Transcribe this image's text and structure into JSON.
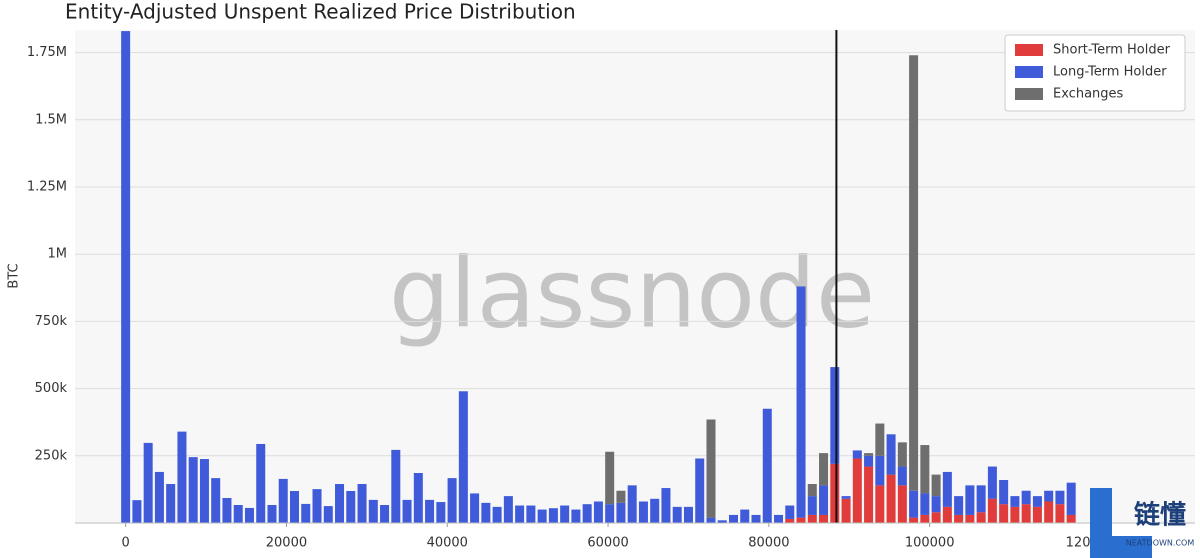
{
  "chart_data": {
    "type": "bar",
    "stacked": true,
    "title": "Entity-Adjusted Unspent Realized Price Distribution",
    "y_label": "BTC",
    "watermark": "glassnode",
    "logo": {
      "text": "链懂",
      "subtext": "NEATDOWN.COM"
    },
    "x": [
      0,
      1400,
      2800,
      4200,
      5600,
      7000,
      8400,
      9800,
      11200,
      12600,
      14000,
      15400,
      16800,
      18200,
      19600,
      21000,
      22400,
      23800,
      25200,
      26600,
      28000,
      29400,
      30800,
      32200,
      33600,
      35000,
      36400,
      37800,
      39200,
      40600,
      42000,
      43400,
      44800,
      46200,
      47600,
      49000,
      50400,
      51800,
      53200,
      54600,
      56000,
      57400,
      58800,
      60200,
      61600,
      63000,
      64400,
      65800,
      67200,
      68600,
      70000,
      71400,
      72800,
      74200,
      75600,
      77000,
      78400,
      79800,
      81200,
      82600,
      84000,
      85400,
      86800,
      88200,
      89600,
      91000,
      92400,
      93800,
      95200,
      96600,
      98000,
      99400,
      100800,
      102200,
      103600,
      105000,
      106400,
      107800,
      109200,
      110600,
      112000,
      113400,
      114800,
      116200,
      117600
    ],
    "series": [
      {
        "name": "Short-Term Holder",
        "color": "#e03c3c",
        "values": [
          0,
          0,
          0,
          0,
          0,
          0,
          0,
          0,
          0,
          0,
          0,
          0,
          0,
          0,
          0,
          0,
          0,
          0,
          0,
          0,
          0,
          0,
          0,
          0,
          0,
          0,
          0,
          0,
          0,
          0,
          0,
          0,
          0,
          0,
          0,
          0,
          0,
          0,
          0,
          0,
          0,
          0,
          0,
          0,
          0,
          0,
          0,
          0,
          0,
          0,
          0,
          0,
          0,
          0,
          0,
          0,
          0,
          0,
          0,
          15000,
          20000,
          30000,
          30000,
          220000,
          90000,
          240000,
          210000,
          140000,
          180000,
          140000,
          20000,
          30000,
          40000,
          60000,
          30000,
          30000,
          40000,
          90000,
          70000,
          60000,
          70000,
          60000,
          80000,
          70000,
          30000
        ]
      },
      {
        "name": "Long-Term Holder",
        "color": "#3f5bd9",
        "values": [
          1830000,
          85000,
          298000,
          190000,
          145000,
          340000,
          245000,
          238000,
          167000,
          93000,
          67000,
          56000,
          294000,
          67000,
          164000,
          119000,
          71000,
          126000,
          63000,
          145000,
          119000,
          145000,
          86000,
          67000,
          272000,
          86000,
          186000,
          86000,
          78000,
          167000,
          490000,
          110000,
          75000,
          60000,
          100000,
          65000,
          65000,
          50000,
          55000,
          65000,
          50000,
          70000,
          80000,
          70000,
          75000,
          140000,
          80000,
          90000,
          130000,
          60000,
          60000,
          240000,
          20000,
          10000,
          30000,
          50000,
          30000,
          425000,
          30000,
          50000,
          860000,
          70000,
          110000,
          360000,
          10000,
          30000,
          40000,
          110000,
          150000,
          70000,
          100000,
          80000,
          60000,
          130000,
          70000,
          110000,
          100000,
          120000,
          90000,
          40000,
          50000,
          40000,
          40000,
          50000,
          120000
        ]
      },
      {
        "name": "Exchanges",
        "color": "#6e6e6e",
        "values": [
          0,
          0,
          0,
          0,
          0,
          0,
          0,
          0,
          0,
          0,
          0,
          0,
          0,
          0,
          0,
          0,
          0,
          0,
          0,
          0,
          0,
          0,
          0,
          0,
          0,
          0,
          0,
          0,
          0,
          0,
          0,
          0,
          0,
          0,
          0,
          0,
          0,
          0,
          0,
          0,
          0,
          0,
          0,
          195000,
          45000,
          0,
          0,
          0,
          0,
          0,
          0,
          0,
          365000,
          0,
          0,
          0,
          0,
          0,
          0,
          0,
          0,
          45000,
          120000,
          0,
          0,
          0,
          10000,
          120000,
          0,
          90000,
          1620000,
          180000,
          80000,
          0,
          0,
          0,
          0,
          0,
          0,
          0,
          0,
          0,
          0,
          0,
          0
        ]
      }
    ],
    "vline": {
      "x": 88400,
      "color": "#111111"
    },
    "xlim": [
      -6300,
      133000
    ],
    "xticks": [
      0,
      20000,
      40000,
      60000,
      80000,
      100000,
      120000
    ],
    "ylim": [
      0,
      1834000
    ],
    "yticks": [
      {
        "value": 250000,
        "label": "250k"
      },
      {
        "value": 500000,
        "label": "500k"
      },
      {
        "value": 750000,
        "label": "750k"
      },
      {
        "value": 1000000,
        "label": "1M"
      },
      {
        "value": 1250000,
        "label": "1.25M"
      },
      {
        "value": 1500000,
        "label": "1.5M"
      },
      {
        "value": 1750000,
        "label": "1.75M"
      }
    ],
    "grid": true,
    "legend": "top-right"
  }
}
